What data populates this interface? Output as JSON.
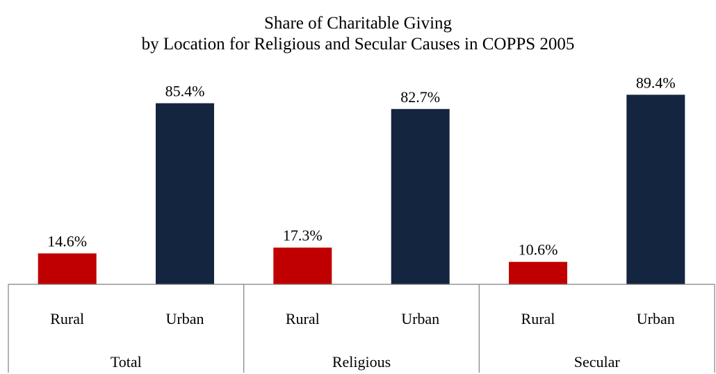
{
  "chart_data": {
    "type": "bar",
    "title": "Share of Charitable Giving",
    "subtitle": "by Location for Religious and Secular Causes in COPPS 2005",
    "value_format": "percent-1dp",
    "groups": [
      {
        "label": "Total",
        "bars": [
          {
            "category": "Rural",
            "value": 14.6,
            "color": "#C00000"
          },
          {
            "category": "Urban",
            "value": 85.4,
            "color": "#13253F"
          }
        ]
      },
      {
        "label": "Religious",
        "bars": [
          {
            "category": "Rural",
            "value": 17.3,
            "color": "#C00000"
          },
          {
            "category": "Urban",
            "value": 82.7,
            "color": "#13253F"
          }
        ]
      },
      {
        "label": "Secular",
        "bars": [
          {
            "category": "Rural",
            "value": 10.6,
            "color": "#C00000"
          },
          {
            "category": "Urban",
            "value": 89.4,
            "color": "#13253F"
          }
        ]
      }
    ],
    "ylim": [
      0,
      100
    ],
    "grid": false,
    "legend": "none"
  }
}
